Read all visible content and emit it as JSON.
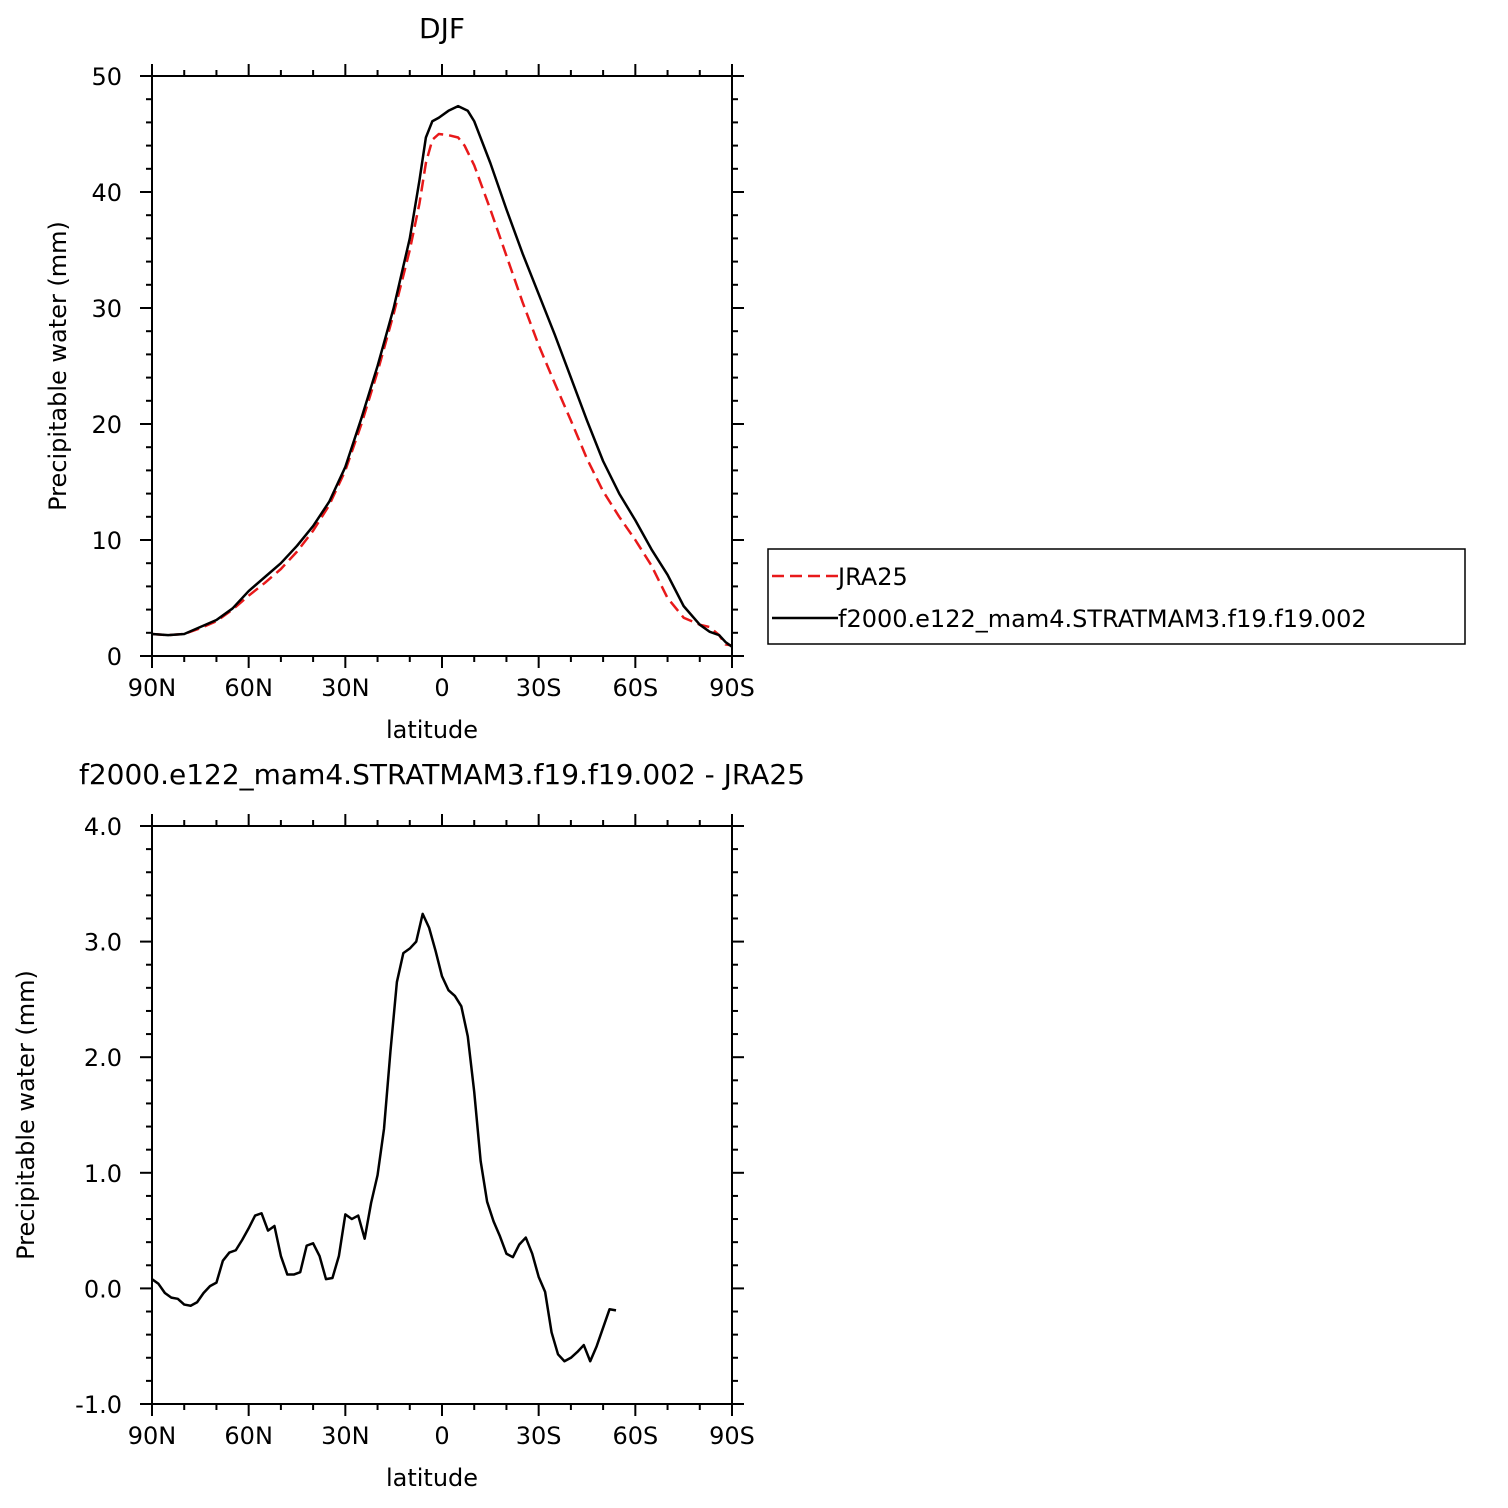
{
  "chart_data": [
    {
      "type": "line",
      "title": "DJF",
      "xlabel": "latitude",
      "ylabel": "Precipitable water (mm)",
      "xlim": [
        -90,
        90
      ],
      "ylim": [
        0,
        50
      ],
      "x_ticks": [
        {
          "value": -90,
          "label": "90N"
        },
        {
          "value": -60,
          "label": "60N"
        },
        {
          "value": -30,
          "label": "30N"
        },
        {
          "value": 0,
          "label": "0"
        },
        {
          "value": 30,
          "label": "30S"
        },
        {
          "value": 60,
          "label": "60S"
        },
        {
          "value": 90,
          "label": "90S"
        }
      ],
      "y_ticks": [
        {
          "value": 0,
          "label": "0"
        },
        {
          "value": 10,
          "label": "10"
        },
        {
          "value": 20,
          "label": "20"
        },
        {
          "value": 30,
          "label": "30"
        },
        {
          "value": 40,
          "label": "40"
        },
        {
          "value": 50,
          "label": "50"
        }
      ],
      "legend": {
        "placement": "right"
      },
      "series": [
        {
          "name": "JRA25",
          "color": "#e8191a",
          "dash": "dashed",
          "points": [
            [
              -90,
              1.9
            ],
            [
              -85,
              1.8
            ],
            [
              -80,
              1.9
            ],
            [
              -75,
              2.4
            ],
            [
              -70,
              3.0
            ],
            [
              -65,
              4.0
            ],
            [
              -60,
              5.2
            ],
            [
              -55,
              6.3
            ],
            [
              -50,
              7.5
            ],
            [
              -45,
              9.0
            ],
            [
              -40,
              10.8
            ],
            [
              -35,
              13.0
            ],
            [
              -30,
              16.0
            ],
            [
              -25,
              20.0
            ],
            [
              -20,
              24.5
            ],
            [
              -15,
              29.5
            ],
            [
              -10,
              35.0
            ],
            [
              -7,
              39.0
            ],
            [
              -5,
              42.5
            ],
            [
              -3,
              44.5
            ],
            [
              -1,
              45.0
            ],
            [
              2,
              44.9
            ],
            [
              5,
              44.7
            ],
            [
              7,
              44.0
            ],
            [
              10,
              42.3
            ],
            [
              15,
              38.5
            ],
            [
              20,
              34.5
            ],
            [
              25,
              30.5
            ],
            [
              30,
              26.8
            ],
            [
              35,
              23.5
            ],
            [
              40,
              20.3
            ],
            [
              45,
              17.0
            ],
            [
              50,
              14.2
            ],
            [
              55,
              12.0
            ],
            [
              60,
              10.0
            ],
            [
              65,
              7.8
            ],
            [
              70,
              5.0
            ],
            [
              75,
              3.3
            ],
            [
              80,
              2.7
            ],
            [
              83,
              2.5
            ],
            [
              86,
              1.8
            ],
            [
              88,
              1.0
            ],
            [
              90,
              0.9
            ]
          ]
        },
        {
          "name": "f2000.e122_mam4.STRATMAM3.f19.f19.002",
          "color": "#000000",
          "dash": "solid",
          "points": [
            [
              -90,
              1.9
            ],
            [
              -85,
              1.8
            ],
            [
              -80,
              1.9
            ],
            [
              -75,
              2.5
            ],
            [
              -70,
              3.1
            ],
            [
              -65,
              4.1
            ],
            [
              -60,
              5.6
            ],
            [
              -55,
              6.8
            ],
            [
              -50,
              8.0
            ],
            [
              -45,
              9.5
            ],
            [
              -40,
              11.2
            ],
            [
              -35,
              13.3
            ],
            [
              -30,
              16.3
            ],
            [
              -25,
              20.5
            ],
            [
              -20,
              25.0
            ],
            [
              -15,
              30.0
            ],
            [
              -10,
              36.0
            ],
            [
              -7,
              41.0
            ],
            [
              -5,
              44.7
            ],
            [
              -3,
              46.1
            ],
            [
              -1,
              46.4
            ],
            [
              2,
              47.0
            ],
            [
              5,
              47.4
            ],
            [
              8,
              47.0
            ],
            [
              10,
              46.1
            ],
            [
              15,
              42.5
            ],
            [
              20,
              38.5
            ],
            [
              25,
              34.7
            ],
            [
              30,
              31.2
            ],
            [
              35,
              27.7
            ],
            [
              40,
              24.0
            ],
            [
              45,
              20.3
            ],
            [
              50,
              16.8
            ],
            [
              55,
              14.0
            ],
            [
              60,
              11.7
            ],
            [
              65,
              9.2
            ],
            [
              70,
              7.0
            ],
            [
              75,
              4.3
            ],
            [
              80,
              2.7
            ],
            [
              83,
              2.1
            ],
            [
              86,
              1.8
            ],
            [
              88,
              1.2
            ],
            [
              90,
              0.8
            ]
          ]
        }
      ]
    },
    {
      "type": "line",
      "title": "f2000.e122_mam4.STRATMAM3.f19.f19.002 - JRA25",
      "xlabel": "latitude",
      "ylabel": "Precipitable water (mm)",
      "xlim": [
        -90,
        90
      ],
      "ylim": [
        -1.0,
        4.0
      ],
      "x_ticks": [
        {
          "value": -90,
          "label": "90N"
        },
        {
          "value": -60,
          "label": "60N"
        },
        {
          "value": -30,
          "label": "30N"
        },
        {
          "value": 0,
          "label": "0"
        },
        {
          "value": 30,
          "label": "30S"
        },
        {
          "value": 60,
          "label": "60S"
        },
        {
          "value": 90,
          "label": "90S"
        }
      ],
      "y_ticks": [
        {
          "value": -1.0,
          "label": "-1.0"
        },
        {
          "value": 0.0,
          "label": "0.0"
        },
        {
          "value": 1.0,
          "label": "1.0"
        },
        {
          "value": 2.0,
          "label": "2.0"
        },
        {
          "value": 3.0,
          "label": "3.0"
        },
        {
          "value": 4.0,
          "label": "4.0"
        }
      ],
      "series": [
        {
          "color": "#000000",
          "dash": "solid",
          "points": [
            [
              -90,
              0.08
            ],
            [
              -88,
              0.04
            ],
            [
              -86,
              -0.04
            ],
            [
              -84,
              -0.08
            ],
            [
              -82,
              -0.09
            ],
            [
              -80,
              -0.14
            ],
            [
              -78,
              -0.15
            ],
            [
              -76,
              -0.12
            ],
            [
              -74,
              -0.04
            ],
            [
              -72,
              0.02
            ],
            [
              -70,
              0.05
            ],
            [
              -68,
              0.24
            ],
            [
              -66,
              0.31
            ],
            [
              -64,
              0.33
            ],
            [
              -62,
              0.42
            ],
            [
              -60,
              0.52
            ],
            [
              -58,
              0.63
            ],
            [
              -56,
              0.65
            ],
            [
              -54,
              0.5
            ],
            [
              -52,
              0.54
            ],
            [
              -50,
              0.28
            ],
            [
              -48,
              0.12
            ],
            [
              -46,
              0.12
            ],
            [
              -44,
              0.14
            ],
            [
              -42,
              0.37
            ],
            [
              -40,
              0.39
            ],
            [
              -38,
              0.28
            ],
            [
              -36,
              0.08
            ],
            [
              -34,
              0.09
            ],
            [
              -32,
              0.28
            ],
            [
              -30,
              0.64
            ],
            [
              -28,
              0.6
            ],
            [
              -26,
              0.63
            ],
            [
              -24,
              0.43
            ],
            [
              -22,
              0.74
            ],
            [
              -20,
              0.98
            ],
            [
              -18,
              1.38
            ],
            [
              -16,
              2.05
            ],
            [
              -14,
              2.65
            ],
            [
              -12,
              2.9
            ],
            [
              -10,
              2.94
            ],
            [
              -8,
              3.0
            ],
            [
              -6,
              3.24
            ],
            [
              -4,
              3.12
            ],
            [
              -2,
              2.92
            ],
            [
              0,
              2.7
            ],
            [
              2,
              2.58
            ],
            [
              4,
              2.53
            ],
            [
              6,
              2.44
            ],
            [
              8,
              2.18
            ],
            [
              10,
              1.7
            ],
            [
              12,
              1.1
            ],
            [
              14,
              0.75
            ],
            [
              16,
              0.58
            ],
            [
              18,
              0.45
            ],
            [
              20,
              0.3
            ],
            [
              22,
              0.27
            ],
            [
              24,
              0.38
            ],
            [
              26,
              0.44
            ],
            [
              28,
              0.3
            ],
            [
              30,
              0.1
            ],
            [
              32,
              -0.03
            ],
            [
              34,
              -0.38
            ],
            [
              36,
              -0.57
            ],
            [
              38,
              -0.63
            ],
            [
              40,
              -0.6
            ],
            [
              42,
              -0.55
            ],
            [
              44,
              -0.49
            ],
            [
              46,
              -0.63
            ],
            [
              48,
              -0.5
            ],
            [
              50,
              -0.34
            ],
            [
              52,
              -0.18
            ],
            [
              54,
              -0.19
            ]
          ]
        }
      ]
    }
  ]
}
